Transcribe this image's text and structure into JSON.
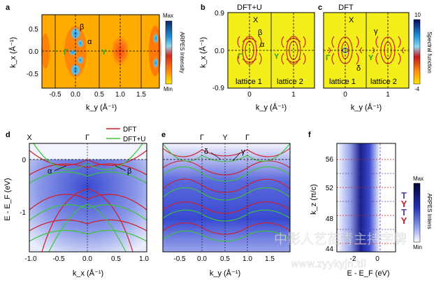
{
  "panels": {
    "a": {
      "letter": "a",
      "ylabel": "k_x (Å⁻¹)",
      "xlabel": "k_y (Å⁻¹)",
      "yticks": [
        "0.5",
        "0.0",
        "-0.5"
      ],
      "xticks": [
        "-0.5",
        "0.0",
        "0.5",
        "1.0",
        "1.5"
      ],
      "labels": {
        "beta": "β",
        "alpha": "α",
        "gamma1": "Γ",
        "y": "Y"
      },
      "colorbar": {
        "title": "ARPES Intensity",
        "max": "Max",
        "min": "Min"
      }
    },
    "b": {
      "letter": "b",
      "title": "DFT+U",
      "ylabel": "k_x (Å⁻¹)",
      "xlabel": "k_y (Å⁻¹)",
      "yticks": [
        "0.9",
        "0.0",
        "-0.9"
      ],
      "xticks": [
        "0",
        "1"
      ],
      "labels": {
        "x": "X",
        "beta": "β",
        "alpha": "α",
        "gamma": "Γ",
        "y": "Y",
        "lattice1": "lattice 1",
        "lattice2": "lattice 2"
      }
    },
    "c": {
      "letter": "c",
      "title": "DFT",
      "xlabel": "k_y (Å⁻¹)",
      "xticks": [
        "0",
        "1"
      ],
      "labels": {
        "x": "X",
        "gamma_greek": "γ",
        "delta": "δ",
        "gamma": "Γ",
        "y": "Y",
        "lattice1": "lattice 1",
        "lattice2": "lattice 2"
      },
      "colorbar": {
        "title": "Spectral function",
        "max": "10",
        "min": "-4"
      }
    },
    "d": {
      "letter": "d",
      "ylabel": "E - E_F (eV)",
      "xlabel": "k_x (Å⁻¹)",
      "yticks": [
        "0",
        "-1"
      ],
      "xticks": [
        "-1.0",
        "-0.5",
        "0.0",
        "0.5",
        "1.0"
      ],
      "top_labels": [
        "X",
        "Γ"
      ],
      "legend": [
        "DFT",
        "DFT+U"
      ],
      "labels": {
        "alpha": "α",
        "beta": "β"
      }
    },
    "e": {
      "letter": "e",
      "xlabel": "k_y (Å⁻¹)",
      "xticks": [
        "-0.5",
        "0.0",
        "0.5",
        "1.0",
        "1.5"
      ],
      "top_labels": [
        "Γ",
        "Y",
        "Γ"
      ],
      "labels": {
        "delta": "δ",
        "gamma": "γ"
      }
    },
    "f": {
      "letter": "f",
      "ylabel": "k_z (π/c)",
      "xlabel": "E - E_F (eV)",
      "yticks": [
        "56",
        "52",
        "48",
        "44"
      ],
      "xticks": [
        "-2",
        "0"
      ],
      "side_labels": [
        "T",
        "Y",
        "T",
        "Y"
      ],
      "colorbar": {
        "title": "ARPES Intens",
        "max": "Max",
        "min": "Min"
      }
    }
  },
  "watermark": {
    "cn": "中影人艺苗青主持字牌",
    "url": "www.zyykyjn.tii"
  },
  "colors": {
    "dft": "#d0202a",
    "dftu": "#3cc43c",
    "label_green": "#29a329",
    "label_purple": "#5a3fa8",
    "label_red": "#c81e1e"
  }
}
